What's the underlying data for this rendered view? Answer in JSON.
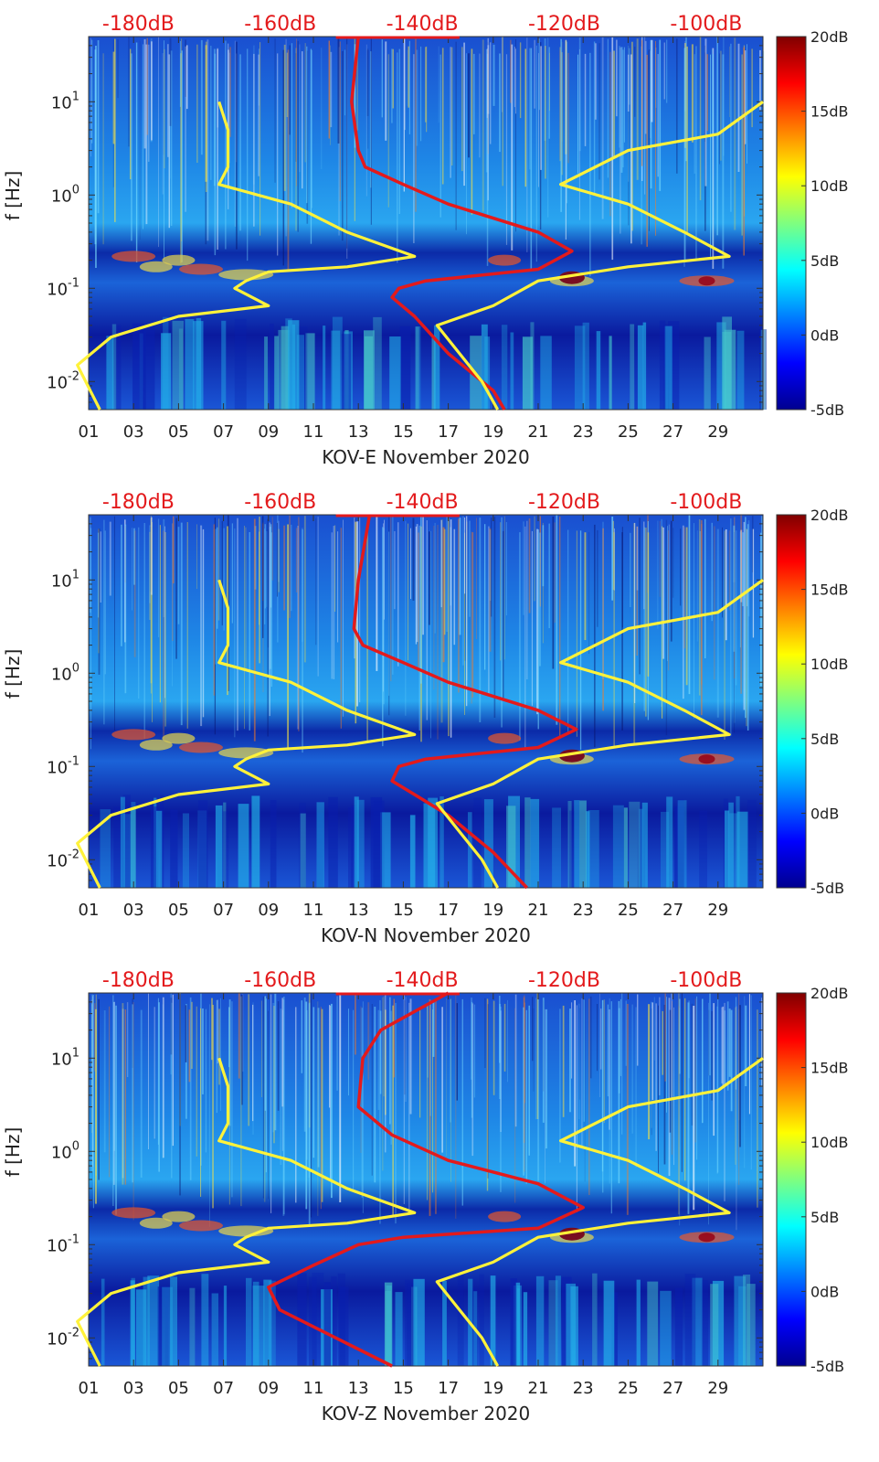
{
  "colors": {
    "background_low": "#0a1a9e",
    "background_mid": "#1e6fe0",
    "highlight": "#e31a1c",
    "red_curve": "#e31a1c",
    "yellow_curve": "#fff23a"
  },
  "chart_data": [
    {
      "type": "heatmap",
      "station": "KOV-E",
      "xlabel": "KOV-E November 2020",
      "ylabel": "f [Hz]",
      "x_ticks": [
        "01",
        "03",
        "05",
        "07",
        "09",
        "11",
        "13",
        "15",
        "17",
        "19",
        "21",
        "23",
        "25",
        "27",
        "29"
      ],
      "x_range_days": [
        1,
        31
      ],
      "y_ticks": [
        "10^{-2}",
        "10^{-1}",
        "10^{0}",
        "10^{1}"
      ],
      "y_range_hz": [
        0.005,
        50
      ],
      "top_db_ticks": [
        "-180dB",
        "-160dB",
        "-140dB",
        "-120dB",
        "-100dB"
      ],
      "top_db_range": [
        -187,
        -92
      ],
      "colorbar_ticks": [
        "20dB",
        "15dB",
        "10dB",
        "5dB",
        "0dB",
        "-5dB"
      ],
      "colorbar_range_db": [
        -5,
        20
      ],
      "series": [
        {
          "name": "red_psd",
          "color": "red",
          "points": [
            [
              13,
              50
            ],
            [
              12.7,
              10
            ],
            [
              13,
              3
            ],
            [
              13.3,
              2
            ],
            [
              15,
              1.3
            ],
            [
              17,
              0.8
            ],
            [
              21,
              0.4
            ],
            [
              22.5,
              0.25
            ],
            [
              21,
              0.16
            ],
            [
              16,
              0.12
            ],
            [
              14.8,
              0.1
            ],
            [
              14.5,
              0.08
            ],
            [
              15.5,
              0.05
            ],
            [
              17,
              0.02
            ],
            [
              19,
              0.008
            ],
            [
              19.5,
              0.005
            ]
          ]
        },
        {
          "name": "yellow_low_noise_model",
          "color": "yellow",
          "points": [
            [
              6.8,
              10
            ],
            [
              7.2,
              5
            ],
            [
              7.2,
              2
            ],
            [
              6.8,
              1.3
            ],
            [
              10,
              0.8
            ],
            [
              12.5,
              0.4
            ],
            [
              15.5,
              0.22
            ],
            [
              12.5,
              0.17
            ],
            [
              9,
              0.15
            ],
            [
              8,
              0.12
            ],
            [
              7.5,
              0.1
            ],
            [
              9,
              0.065
            ],
            [
              5,
              0.05
            ],
            [
              2,
              0.03
            ],
            [
              0.5,
              0.015
            ],
            [
              1.5,
              0.005
            ]
          ]
        },
        {
          "name": "yellow_high_noise_model",
          "color": "yellow",
          "points": [
            [
              31,
              10
            ],
            [
              29,
              4.5
            ],
            [
              25,
              3
            ],
            [
              22,
              1.3
            ],
            [
              25,
              0.8
            ],
            [
              27.5,
              0.4
            ],
            [
              29.5,
              0.22
            ],
            [
              25,
              0.17
            ],
            [
              21,
              0.12
            ],
            [
              19,
              0.065
            ],
            [
              16.5,
              0.04
            ],
            [
              17.5,
              0.02
            ],
            [
              18.5,
              0.01
            ],
            [
              19.2,
              0.005
            ]
          ]
        }
      ]
    },
    {
      "type": "heatmap",
      "station": "KOV-N",
      "xlabel": "KOV-N November 2020",
      "ylabel": "f [Hz]",
      "x_ticks": [
        "01",
        "03",
        "05",
        "07",
        "09",
        "11",
        "13",
        "15",
        "17",
        "19",
        "21",
        "23",
        "25",
        "27",
        "29"
      ],
      "x_range_days": [
        1,
        31
      ],
      "y_ticks": [
        "10^{-2}",
        "10^{-1}",
        "10^{0}",
        "10^{1}"
      ],
      "y_range_hz": [
        0.005,
        50
      ],
      "top_db_ticks": [
        "-180dB",
        "-160dB",
        "-140dB",
        "-120dB",
        "-100dB"
      ],
      "top_db_range": [
        -187,
        -92
      ],
      "colorbar_ticks": [
        "20dB",
        "15dB",
        "10dB",
        "5dB",
        "0dB",
        "-5dB"
      ],
      "colorbar_range_db": [
        -5,
        20
      ],
      "series": [
        {
          "name": "red_psd",
          "color": "red",
          "points": [
            [
              13.5,
              50
            ],
            [
              13,
              10
            ],
            [
              12.8,
              3
            ],
            [
              13.2,
              2
            ],
            [
              15,
              1.3
            ],
            [
              17,
              0.8
            ],
            [
              21,
              0.4
            ],
            [
              22.7,
              0.25
            ],
            [
              21,
              0.16
            ],
            [
              16,
              0.12
            ],
            [
              14.8,
              0.1
            ],
            [
              14.5,
              0.07
            ],
            [
              15.5,
              0.05
            ],
            [
              17,
              0.03
            ],
            [
              19,
              0.012
            ],
            [
              20.5,
              0.005
            ]
          ]
        },
        {
          "name": "yellow_low_noise_model",
          "color": "yellow",
          "points": [
            [
              6.8,
              10
            ],
            [
              7.2,
              5
            ],
            [
              7.2,
              2
            ],
            [
              6.8,
              1.3
            ],
            [
              10,
              0.8
            ],
            [
              12.5,
              0.4
            ],
            [
              15.5,
              0.22
            ],
            [
              12.5,
              0.17
            ],
            [
              9,
              0.15
            ],
            [
              8,
              0.12
            ],
            [
              7.5,
              0.1
            ],
            [
              9,
              0.065
            ],
            [
              5,
              0.05
            ],
            [
              2,
              0.03
            ],
            [
              0.5,
              0.015
            ],
            [
              1.5,
              0.005
            ]
          ]
        },
        {
          "name": "yellow_high_noise_model",
          "color": "yellow",
          "points": [
            [
              31,
              10
            ],
            [
              29,
              4.5
            ],
            [
              25,
              3
            ],
            [
              22,
              1.3
            ],
            [
              25,
              0.8
            ],
            [
              27.5,
              0.4
            ],
            [
              29.5,
              0.22
            ],
            [
              25,
              0.17
            ],
            [
              21,
              0.12
            ],
            [
              19,
              0.065
            ],
            [
              16.5,
              0.04
            ],
            [
              17.5,
              0.02
            ],
            [
              18.5,
              0.01
            ],
            [
              19.2,
              0.005
            ]
          ]
        }
      ]
    },
    {
      "type": "heatmap",
      "station": "KOV-Z",
      "xlabel": "KOV-Z November 2020",
      "ylabel": "f [Hz]",
      "x_ticks": [
        "01",
        "03",
        "05",
        "07",
        "09",
        "11",
        "13",
        "15",
        "17",
        "19",
        "21",
        "23",
        "25",
        "27",
        "29"
      ],
      "x_range_days": [
        1,
        31
      ],
      "y_ticks": [
        "10^{-2}",
        "10^{-1}",
        "10^{0}",
        "10^{1}"
      ],
      "y_range_hz": [
        0.005,
        50
      ],
      "top_db_ticks": [
        "-180dB",
        "-160dB",
        "-140dB",
        "-120dB",
        "-100dB"
      ],
      "top_db_range": [
        -187,
        -92
      ],
      "colorbar_ticks": [
        "20dB",
        "15dB",
        "10dB",
        "5dB",
        "0dB",
        "-5dB"
      ],
      "colorbar_range_db": [
        -5,
        20
      ],
      "series": [
        {
          "name": "red_psd",
          "color": "red",
          "points": [
            [
              17,
              50
            ],
            [
              14,
              20
            ],
            [
              13.2,
              10
            ],
            [
              13,
              3
            ],
            [
              14.5,
              1.5
            ],
            [
              17,
              0.8
            ],
            [
              21,
              0.45
            ],
            [
              23,
              0.25
            ],
            [
              21,
              0.15
            ],
            [
              15,
              0.12
            ],
            [
              13,
              0.1
            ],
            [
              11,
              0.06
            ],
            [
              9,
              0.035
            ],
            [
              9.5,
              0.02
            ],
            [
              12,
              0.01
            ],
            [
              14.5,
              0.005
            ]
          ]
        },
        {
          "name": "yellow_low_noise_model",
          "color": "yellow",
          "points": [
            [
              6.8,
              10
            ],
            [
              7.2,
              5
            ],
            [
              7.2,
              2
            ],
            [
              6.8,
              1.3
            ],
            [
              10,
              0.8
            ],
            [
              12.5,
              0.4
            ],
            [
              15.5,
              0.22
            ],
            [
              12.5,
              0.17
            ],
            [
              9,
              0.15
            ],
            [
              8,
              0.12
            ],
            [
              7.5,
              0.1
            ],
            [
              9,
              0.065
            ],
            [
              5,
              0.05
            ],
            [
              2,
              0.03
            ],
            [
              0.5,
              0.015
            ],
            [
              1.5,
              0.005
            ]
          ]
        },
        {
          "name": "yellow_high_noise_model",
          "color": "yellow",
          "points": [
            [
              31,
              10
            ],
            [
              29,
              4.5
            ],
            [
              25,
              3
            ],
            [
              22,
              1.3
            ],
            [
              25,
              0.8
            ],
            [
              27.5,
              0.4
            ],
            [
              29.5,
              0.22
            ],
            [
              25,
              0.17
            ],
            [
              21,
              0.12
            ],
            [
              19,
              0.065
            ],
            [
              16.5,
              0.04
            ],
            [
              17.5,
              0.02
            ],
            [
              18.5,
              0.01
            ],
            [
              19.2,
              0.005
            ]
          ]
        }
      ]
    }
  ]
}
